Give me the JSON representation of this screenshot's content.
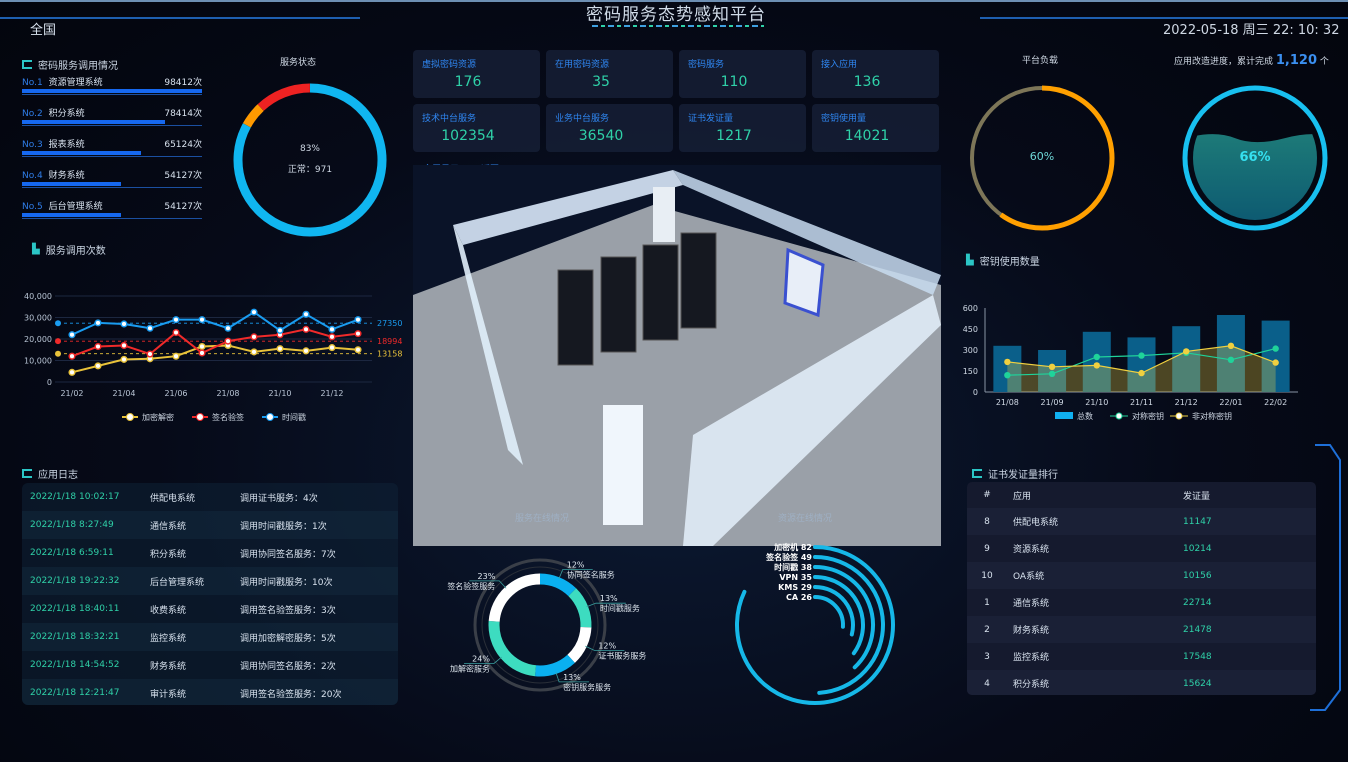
{
  "header": {
    "region": "全国",
    "title": "密码服务态势感知平台",
    "datetime": "2022-05-18 周三 22: 10: 32"
  },
  "ranking": {
    "title": "密码服务调用情况",
    "items": [
      {
        "no": "No.1",
        "name": "资源管理系统",
        "count": "98412次",
        "value": 98412
      },
      {
        "no": "No.2",
        "name": "积分系统",
        "count": "78414次",
        "value": 78414
      },
      {
        "no": "No.3",
        "name": "报表系统",
        "count": "65124次",
        "value": 65124
      },
      {
        "no": "No.4",
        "name": "财务系统",
        "count": "54127次",
        "value": 54127
      },
      {
        "no": "No.5",
        "name": "后台管理系统",
        "count": "54127次",
        "value": 54127
      }
    ]
  },
  "service_status": {
    "title": "服务状态",
    "percent": "83%",
    "normal": "正常：971",
    "segments": [
      {
        "value": 83,
        "color": "#10b6f0"
      },
      {
        "value": 5,
        "color": "#ff9a00"
      },
      {
        "value": 12,
        "color": "#ee2222"
      }
    ]
  },
  "stats": [
    {
      "label": "虚拟密码资源",
      "value": "176"
    },
    {
      "label": "在用密码资源",
      "value": "35"
    },
    {
      "label": "密码服务",
      "value": "110"
    },
    {
      "label": "接入应用",
      "value": "136"
    },
    {
      "label": "技术中台服务",
      "value": "102354"
    },
    {
      "label": "业务中台服务",
      "value": "36540"
    },
    {
      "label": "证书发证量",
      "value": "1217"
    },
    {
      "label": "密钥使用量",
      "value": "14021"
    }
  ],
  "links": {
    "fullscreen": "全屏显示",
    "back": "返回"
  },
  "platform_load": {
    "title": "平台负载",
    "percent": "60%",
    "value": 60
  },
  "app_progress": {
    "title": "应用改造进度，累计完成",
    "count": "1,120",
    "unit": "个",
    "percent": "66%",
    "value": 66
  },
  "chart_data": [
    {
      "type": "line",
      "title": "服务调用次数",
      "categories": [
        "21/02",
        "21/03",
        "21/04",
        "21/05",
        "21/06",
        "21/07",
        "21/08",
        "21/09",
        "21/10",
        "21/11",
        "21/12",
        "22/01"
      ],
      "tick_labels": [
        "21/02",
        "21/04",
        "21/06",
        "21/08",
        "21/10",
        "21/12"
      ],
      "y_ticks": [
        "0",
        "10,000",
        "20,000",
        "30,000",
        "40,000"
      ],
      "ylim": [
        0,
        40000
      ],
      "series": [
        {
          "name": "加密解密",
          "color": "#e8c23a",
          "values": [
            4500,
            7500,
            10500,
            10800,
            12000,
            16500,
            17000,
            14000,
            15500,
            14500,
            16000,
            15000
          ],
          "average": 13158,
          "average_label": "13158"
        },
        {
          "name": "签名验签",
          "color": "#f02a2a",
          "values": [
            12000,
            16500,
            17000,
            13000,
            23000,
            13500,
            19000,
            21000,
            22000,
            24500,
            21000,
            22500
          ],
          "average": 18994,
          "average_label": "18994"
        },
        {
          "name": "时间戳",
          "color": "#1a9cf0",
          "values": [
            22000,
            27500,
            27000,
            25000,
            29000,
            29000,
            25000,
            32500,
            24000,
            31500,
            24500,
            29000
          ],
          "average": 27350,
          "average_label": "27350"
        }
      ]
    },
    {
      "type": "bar",
      "title": "密钥使用数量",
      "categories": [
        "21/08",
        "21/09",
        "21/10",
        "21/11",
        "21/12",
        "22/01",
        "22/02"
      ],
      "y_ticks": [
        "0",
        "150",
        "300",
        "450",
        "600"
      ],
      "ylim": [
        0,
        600
      ],
      "series": [
        {
          "name": "总数",
          "type": "bar",
          "color": "#0a5f8a",
          "values": [
            330,
            300,
            430,
            390,
            470,
            550,
            510
          ]
        },
        {
          "name": "对称密钥",
          "type": "line",
          "color": "#1fd39a",
          "values": [
            120,
            130,
            250,
            260,
            280,
            230,
            310
          ]
        },
        {
          "name": "非对称密钥",
          "type": "area",
          "color": "#f0d040",
          "values": [
            215,
            180,
            190,
            135,
            290,
            330,
            210
          ]
        }
      ]
    },
    {
      "type": "pie",
      "title": "服务在线情况",
      "slices": [
        {
          "name": "协同签名服务",
          "label": "12%",
          "value": 12,
          "color": "#0ab0f0"
        },
        {
          "name": "时间戳服务",
          "label": "13%",
          "value": 13,
          "color": "#3ddcc0"
        },
        {
          "name": "证书服务服务",
          "label": "12%",
          "value": 12,
          "color": "#ffffff"
        },
        {
          "name": "密钥服务服务",
          "label": "13%",
          "value": 13,
          "color": "#0ab0f0"
        },
        {
          "name": "加解密服务",
          "label": "24%",
          "value": 24,
          "color": "#3ddcc0"
        },
        {
          "name": "签名验签服务",
          "label": "23%",
          "value": 23,
          "color": "#ffffff"
        }
      ]
    },
    {
      "type": "radial-bar",
      "title": "资源在线情况",
      "max": 100,
      "items": [
        {
          "name": "加密机",
          "value": 82,
          "label": "加密机 82"
        },
        {
          "name": "签名验签",
          "value": 49,
          "label": "签名验签 49"
        },
        {
          "name": "时间戳",
          "value": 38,
          "label": "时间戳 38"
        },
        {
          "name": "VPN",
          "value": 35,
          "label": "VPN 35"
        },
        {
          "name": "KMS",
          "value": 29,
          "label": "KMS 29"
        },
        {
          "name": "CA",
          "value": 26,
          "label": "CA 26"
        }
      ]
    }
  ],
  "app_log": {
    "title": "应用日志",
    "rows": [
      {
        "time": "2022/1/18 10:02:17",
        "system": "供配电系统",
        "desc": "调用证书服务：4次"
      },
      {
        "time": "2022/1/18 8:27:49",
        "system": "通信系统",
        "desc": "调用时间戳服务：1次"
      },
      {
        "time": "2022/1/18 6:59:11",
        "system": "积分系统",
        "desc": "调用协同签名服务：7次"
      },
      {
        "time": "2022/1/18 19:22:32",
        "system": "后台管理系统",
        "desc": "调用时间戳服务：10次"
      },
      {
        "time": "2022/1/18 18:40:11",
        "system": "收费系统",
        "desc": "调用签名验签服务：3次"
      },
      {
        "time": "2022/1/18 18:32:21",
        "system": "监控系统",
        "desc": "调用加密解密服务：5次"
      },
      {
        "time": "2022/1/18 14:54:52",
        "system": "财务系统",
        "desc": "调用协同签名服务：2次"
      },
      {
        "time": "2022/1/18 12:21:47",
        "system": "审计系统",
        "desc": "调用签名验签服务：20次"
      }
    ]
  },
  "cert_rank": {
    "title": "证书发证量排行",
    "headers": [
      "#",
      "应用",
      "发证量"
    ],
    "rows": [
      {
        "rank": "8",
        "app": "供配电系统",
        "count": "11147"
      },
      {
        "rank": "9",
        "app": "资源系统",
        "count": "10214"
      },
      {
        "rank": "10",
        "app": "OA系统",
        "count": "10156"
      },
      {
        "rank": "1",
        "app": "通信系统",
        "count": "22714"
      },
      {
        "rank": "2",
        "app": "财务系统",
        "count": "21478"
      },
      {
        "rank": "3",
        "app": "监控系统",
        "count": "17548"
      },
      {
        "rank": "4",
        "app": "积分系统",
        "count": "15624"
      }
    ]
  }
}
